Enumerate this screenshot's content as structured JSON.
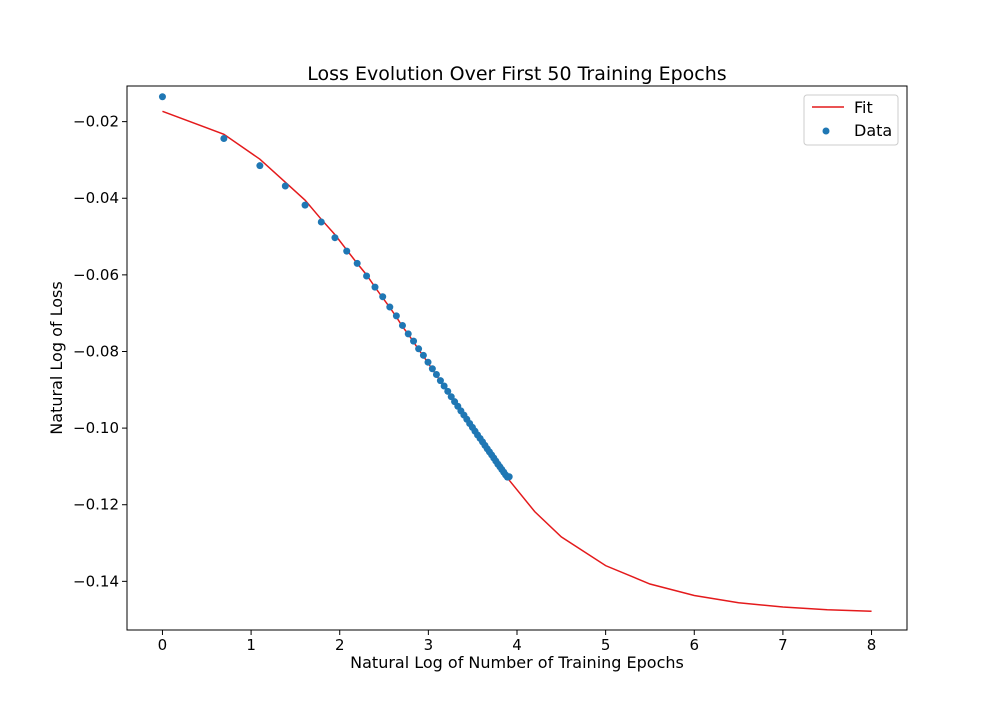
{
  "chart_data": {
    "type": "scatter",
    "title": "Loss Evolution Over First 50 Training Epochs",
    "xlabel": "Natural Log of Number of Training Epochs",
    "ylabel": "Natural Log of Loss",
    "xlim": [
      -0.4,
      8.4
    ],
    "ylim": [
      -0.1527,
      -0.0107
    ],
    "xticks": [
      0,
      1,
      2,
      3,
      4,
      5,
      6,
      7,
      8
    ],
    "xtick_labels": [
      "0",
      "1",
      "2",
      "3",
      "4",
      "5",
      "6",
      "7",
      "8"
    ],
    "yticks": [
      -0.14,
      -0.12,
      -0.1,
      -0.08,
      -0.06,
      -0.04,
      -0.02
    ],
    "ytick_labels": [
      "−0.14",
      "−0.12",
      "−0.10",
      "−0.08",
      "−0.06",
      "−0.04",
      "−0.02"
    ],
    "grid": false,
    "legend": {
      "placement": "upper right",
      "entries": [
        {
          "label": "Fit",
          "kind": "line",
          "color": "#e41a1c"
        },
        {
          "label": "Data",
          "kind": "marker",
          "color": "#1f77b4"
        }
      ]
    },
    "series": [
      {
        "name": "Fit",
        "kind": "line",
        "color": "#e41a1c",
        "x": [
          0,
          0.693,
          1.099,
          1.386,
          1.609,
          1.792,
          1.946,
          2.079,
          2.197,
          2.303,
          2.398,
          2.485,
          2.565,
          2.639,
          2.708,
          2.773,
          2.833,
          2.89,
          2.944,
          2.996,
          3.045,
          3.091,
          3.136,
          3.178,
          3.219,
          3.258,
          3.296,
          3.332,
          3.367,
          3.401,
          3.434,
          3.466,
          3.497,
          3.526,
          3.555,
          3.584,
          3.611,
          3.638,
          3.664,
          3.689,
          3.714,
          3.738,
          3.761,
          3.784,
          3.807,
          3.829,
          3.85,
          3.871,
          3.892,
          3.912,
          4.2,
          4.5,
          5.0,
          5.5,
          6.0,
          6.5,
          7.0,
          7.5,
          8.0
        ],
        "y": [
          -0.0173,
          -0.0233,
          -0.0298,
          -0.0358,
          -0.0405,
          -0.0455,
          -0.0495,
          -0.0535,
          -0.057,
          -0.06,
          -0.0632,
          -0.066,
          -0.0685,
          -0.071,
          -0.0735,
          -0.0755,
          -0.0775,
          -0.0795,
          -0.0812,
          -0.083,
          -0.0847,
          -0.0862,
          -0.0878,
          -0.0892,
          -0.0906,
          -0.0919,
          -0.0932,
          -0.0944,
          -0.0956,
          -0.0967,
          -0.0978,
          -0.0989,
          -0.0999,
          -0.1009,
          -0.1019,
          -0.1028,
          -0.1037,
          -0.1046,
          -0.1055,
          -0.1063,
          -0.1071,
          -0.1079,
          -0.1087,
          -0.1095,
          -0.1102,
          -0.1109,
          -0.1116,
          -0.1123,
          -0.113,
          -0.1136,
          -0.1218,
          -0.1284,
          -0.1359,
          -0.1407,
          -0.1437,
          -0.1456,
          -0.1467,
          -0.1474,
          -0.1478
        ]
      },
      {
        "name": "Data",
        "kind": "scatter",
        "color": "#1f77b4",
        "x": [
          0,
          0.693,
          1.099,
          1.386,
          1.609,
          1.792,
          1.946,
          2.079,
          2.197,
          2.303,
          2.398,
          2.485,
          2.565,
          2.639,
          2.708,
          2.773,
          2.833,
          2.89,
          2.944,
          2.996,
          3.045,
          3.091,
          3.136,
          3.178,
          3.219,
          3.258,
          3.296,
          3.332,
          3.367,
          3.401,
          3.434,
          3.466,
          3.497,
          3.526,
          3.555,
          3.584,
          3.611,
          3.638,
          3.664,
          3.689,
          3.714,
          3.738,
          3.761,
          3.784,
          3.807,
          3.829,
          3.85,
          3.871,
          3.892,
          3.912
        ],
        "y": [
          -0.0135,
          -0.0244,
          -0.0315,
          -0.0368,
          -0.0418,
          -0.0462,
          -0.0503,
          -0.0538,
          -0.057,
          -0.0603,
          -0.0632,
          -0.0657,
          -0.0684,
          -0.0707,
          -0.0732,
          -0.0754,
          -0.0773,
          -0.0793,
          -0.081,
          -0.0828,
          -0.0845,
          -0.086,
          -0.0876,
          -0.089,
          -0.0904,
          -0.0918,
          -0.0931,
          -0.0943,
          -0.0955,
          -0.0966,
          -0.0977,
          -0.0988,
          -0.0998,
          -0.1008,
          -0.1018,
          -0.1027,
          -0.1036,
          -0.1045,
          -0.1054,
          -0.1062,
          -0.107,
          -0.1078,
          -0.1086,
          -0.1094,
          -0.1101,
          -0.1108,
          -0.1115,
          -0.1122,
          -0.1128,
          -0.1127
        ]
      }
    ]
  }
}
